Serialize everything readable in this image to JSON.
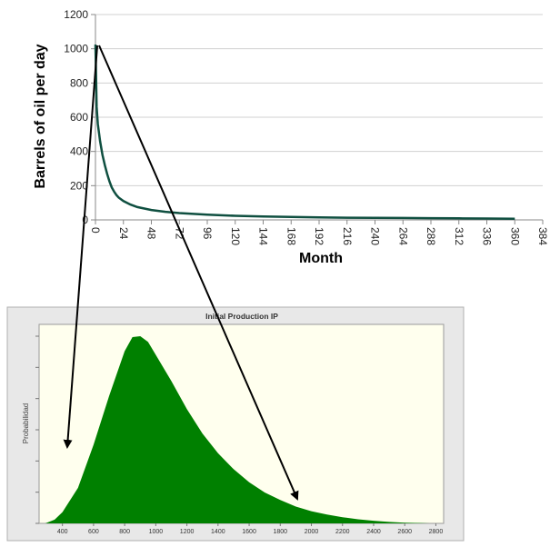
{
  "chart_data": [
    {
      "type": "line",
      "title": "",
      "xlabel": "Month",
      "ylabel": "Barrels of oil per day",
      "xlim": [
        0,
        384
      ],
      "ylim": [
        0,
        1200
      ],
      "x_ticks": [
        "0",
        "24",
        "48",
        "72",
        "96",
        "120",
        "144",
        "168",
        "192",
        "216",
        "240",
        "264",
        "288",
        "312",
        "336",
        "360",
        "384"
      ],
      "y_ticks": [
        "0",
        "200",
        "400",
        "600",
        "800",
        "1000",
        "1200"
      ],
      "grid": "horizontal",
      "line_color": "#0f4f40",
      "series": [
        {
          "name": "",
          "points": [
            [
              0,
              1025
            ],
            [
              1,
              660
            ],
            [
              2,
              560
            ],
            [
              4,
              460
            ],
            [
              6,
              380
            ],
            [
              8,
              320
            ],
            [
              10,
              270
            ],
            [
              12,
              225
            ],
            [
              14,
              190
            ],
            [
              16,
              165
            ],
            [
              18,
              145
            ],
            [
              20,
              130
            ],
            [
              24,
              110
            ],
            [
              30,
              90
            ],
            [
              36,
              75
            ],
            [
              48,
              58
            ],
            [
              60,
              47
            ],
            [
              72,
              40
            ],
            [
              96,
              30
            ],
            [
              120,
              24
            ],
            [
              144,
              20
            ],
            [
              168,
              17
            ],
            [
              192,
              15
            ],
            [
              216,
              13
            ],
            [
              240,
              12
            ],
            [
              264,
              11
            ],
            [
              288,
              10
            ],
            [
              312,
              9
            ],
            [
              336,
              8
            ],
            [
              360,
              7
            ]
          ]
        }
      ]
    },
    {
      "type": "area",
      "title": "Initial Production IP",
      "xlabel": "",
      "ylabel": "Probabilidad",
      "xlim": [
        250,
        2850
      ],
      "x_ticks": [
        "400",
        "600",
        "800",
        "1000",
        "1200",
        "1400",
        "1600",
        "1800",
        "2000",
        "2200",
        "2400",
        "2600",
        "2800"
      ],
      "background": "#ffffee",
      "fill_color": "#008000",
      "series": [
        {
          "name": "",
          "points": [
            [
              290,
              0
            ],
            [
              350,
              0.02
            ],
            [
              400,
              0.06
            ],
            [
              500,
              0.19
            ],
            [
              600,
              0.42
            ],
            [
              700,
              0.68
            ],
            [
              800,
              0.92
            ],
            [
              850,
              0.995
            ],
            [
              900,
              1.0
            ],
            [
              950,
              0.97
            ],
            [
              1000,
              0.9
            ],
            [
              1100,
              0.76
            ],
            [
              1200,
              0.61
            ],
            [
              1300,
              0.48
            ],
            [
              1400,
              0.375
            ],
            [
              1500,
              0.29
            ],
            [
              1600,
              0.22
            ],
            [
              1700,
              0.165
            ],
            [
              1800,
              0.125
            ],
            [
              1900,
              0.09
            ],
            [
              2000,
              0.065
            ],
            [
              2100,
              0.047
            ],
            [
              2200,
              0.033
            ],
            [
              2300,
              0.022
            ],
            [
              2400,
              0.014
            ],
            [
              2500,
              0.008
            ],
            [
              2600,
              0.004
            ],
            [
              2700,
              0.002
            ],
            [
              2760,
              0
            ]
          ]
        }
      ]
    }
  ]
}
